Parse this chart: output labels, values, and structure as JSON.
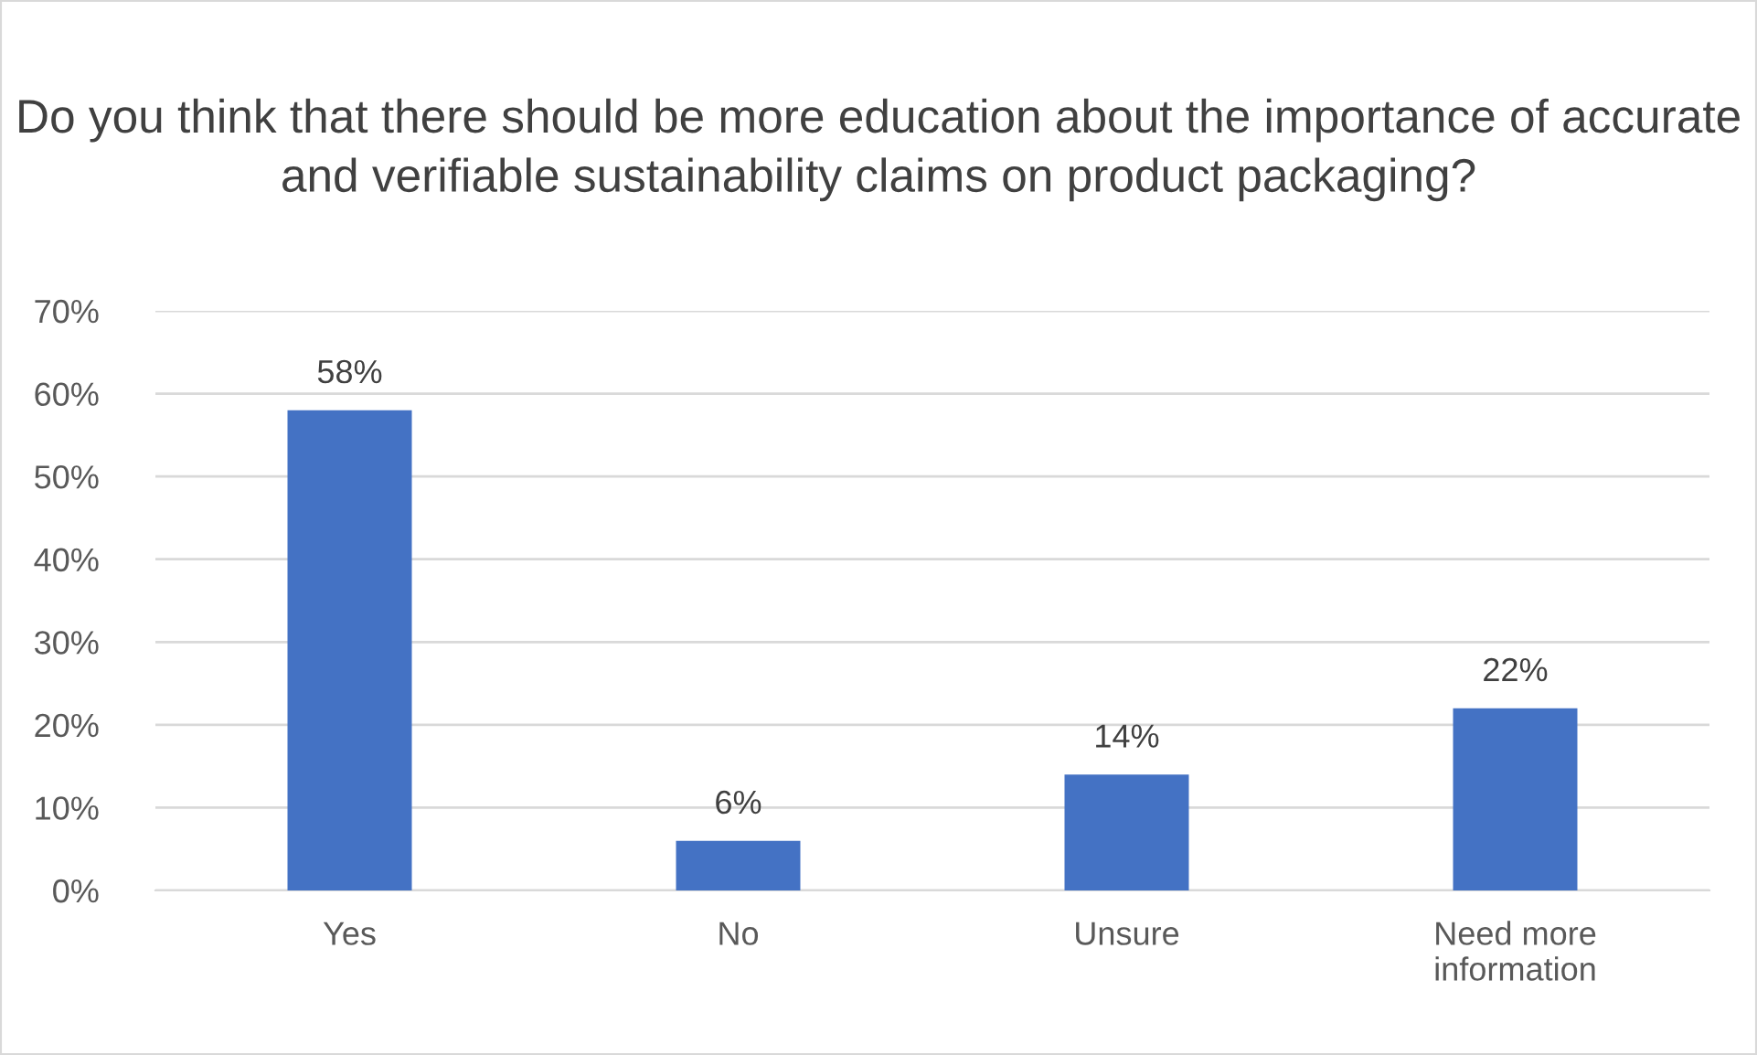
{
  "chart_data": {
    "type": "bar",
    "title": "Do you think that there should be more education about the importance of accurate and verifiable sustainability claims on product packaging?",
    "categories": [
      "Yes",
      "No",
      "Unsure",
      "Need more\ninformation"
    ],
    "values": [
      58,
      6,
      14,
      22
    ],
    "value_labels": [
      "58%",
      "6%",
      "14%",
      "22%"
    ],
    "color": "#4472c4",
    "ylim": [
      0,
      70
    ],
    "yticks": [
      {
        "value": 0,
        "label": "0%"
      },
      {
        "value": 10,
        "label": "10%"
      },
      {
        "value": 20,
        "label": "20%"
      },
      {
        "value": 30,
        "label": "30%"
      },
      {
        "value": 40,
        "label": "40%"
      },
      {
        "value": 50,
        "label": "50%"
      },
      {
        "value": 60,
        "label": "60%"
      },
      {
        "value": 70,
        "label": "70%"
      }
    ],
    "grid": "y"
  }
}
